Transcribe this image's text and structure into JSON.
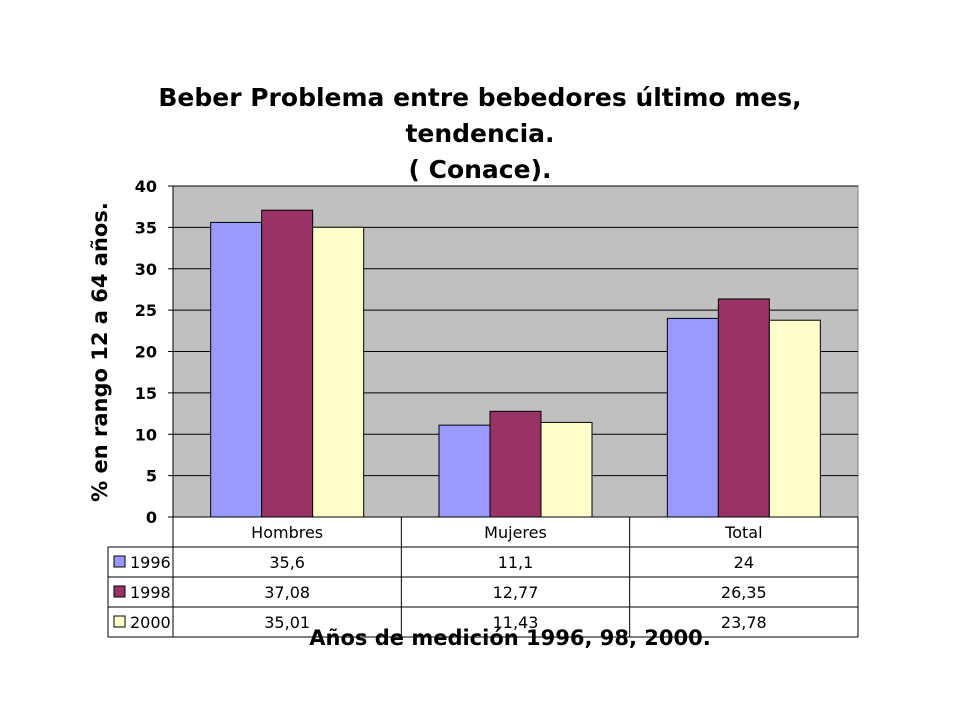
{
  "chart_data": {
    "type": "bar",
    "title": [
      "Beber Problema entre bebedores último mes,",
      "tendencia.",
      "( Conace)."
    ],
    "xlabel": "Años de medición 1996, 98, 2000.",
    "ylabel": "% en rango 12 a 64 años.",
    "ylim": [
      0,
      40
    ],
    "yticks": [
      0,
      5,
      10,
      15,
      20,
      25,
      30,
      35,
      40
    ],
    "grid": true,
    "plot_background": "#c0c0c0",
    "categories": [
      "Hombres",
      "Mujeres",
      "Total"
    ],
    "series": [
      {
        "name": "1996",
        "color": "#9999ff",
        "values": [
          35.6,
          11.1,
          24
        ],
        "labels": [
          "35,6",
          "11,1",
          "24"
        ]
      },
      {
        "name": "1998",
        "color": "#993366",
        "values": [
          37.08,
          12.77,
          26.35
        ],
        "labels": [
          "37,08",
          "12,77",
          "26,35"
        ]
      },
      {
        "name": "2000",
        "color": "#ffffcc",
        "values": [
          35.01,
          11.43,
          23.78
        ],
        "labels": [
          "35,01",
          "11,43",
          "23,78"
        ]
      }
    ],
    "data_table": true
  }
}
